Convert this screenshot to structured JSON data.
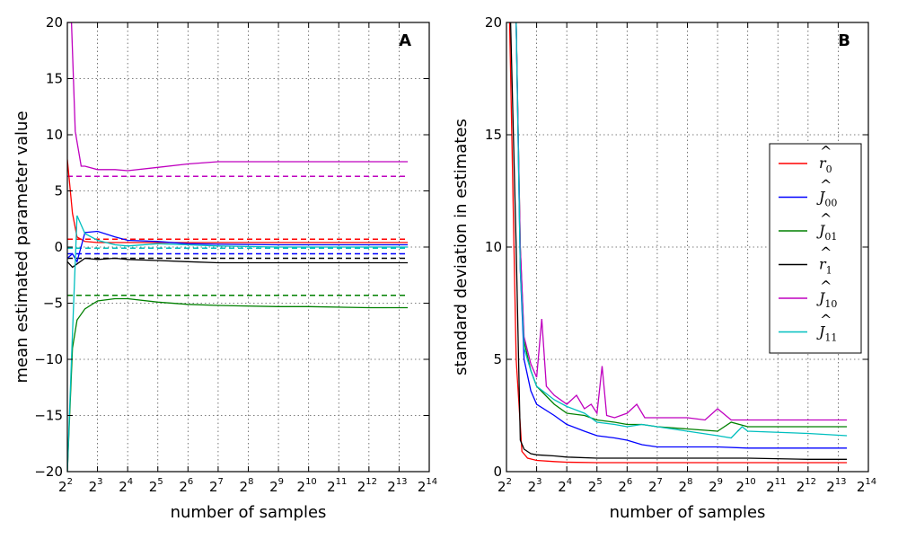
{
  "chart_data": [
    {
      "type": "line",
      "panel_label": "A",
      "xlabel": "number of samples",
      "ylabel": "mean estimated parameter value",
      "x_scale": "log2",
      "xlim": [
        4,
        16384
      ],
      "ylim": [
        -20,
        20
      ],
      "x_ticks": [
        {
          "base": "2",
          "exp": "2",
          "value": 4
        },
        {
          "base": "2",
          "exp": "3",
          "value": 8
        },
        {
          "base": "2",
          "exp": "4",
          "value": 16
        },
        {
          "base": "2",
          "exp": "5",
          "value": 32
        },
        {
          "base": "2",
          "exp": "6",
          "value": 64
        },
        {
          "base": "2",
          "exp": "7",
          "value": 128
        },
        {
          "base": "2",
          "exp": "8",
          "value": 256
        },
        {
          "base": "2",
          "exp": "9",
          "value": 512
        },
        {
          "base": "2",
          "exp": "10",
          "value": 1024
        },
        {
          "base": "2",
          "exp": "11",
          "value": 2048
        },
        {
          "base": "2",
          "exp": "12",
          "value": 4096
        },
        {
          "base": "2",
          "exp": "13",
          "value": 8192
        },
        {
          "base": "2",
          "exp": "14",
          "value": 16384
        }
      ],
      "y_ticks": [
        -20,
        -15,
        -10,
        -5,
        0,
        5,
        10,
        15,
        20
      ],
      "y_tick_labels": [
        "−20",
        "−15",
        "−10",
        "−5",
        "0",
        "5",
        "10",
        "15",
        "20"
      ],
      "grid": true,
      "series": [
        {
          "name": "r0",
          "color": "#ff0000",
          "x": [
            4,
            4.5,
            5,
            6,
            8,
            12,
            16,
            32,
            64,
            128,
            512,
            1024,
            4096,
            10000
          ],
          "y": [
            7.8,
            3.0,
            0.9,
            0.5,
            0.4,
            0.4,
            0.4,
            0.4,
            0.4,
            0.4,
            0.4,
            0.4,
            0.4,
            0.4
          ]
        },
        {
          "name": "J00",
          "color": "#0000ff",
          "x": [
            4,
            4.5,
            5,
            6,
            8,
            12,
            16,
            32,
            64,
            128,
            512,
            1024,
            4096,
            10000
          ],
          "y": [
            -1.0,
            -0.6,
            -1.3,
            1.3,
            1.4,
            0.9,
            0.6,
            0.5,
            0.3,
            0.25,
            0.2,
            0.2,
            0.2,
            0.2
          ]
        },
        {
          "name": "J01",
          "color": "#008000",
          "x": [
            4,
            4.5,
            5,
            6,
            8,
            12,
            16,
            32,
            64,
            128,
            512,
            1024,
            4096,
            10000
          ],
          "y": [
            -20,
            -9.0,
            -6.5,
            -5.5,
            -4.8,
            -4.6,
            -4.6,
            -4.9,
            -5.1,
            -5.2,
            -5.3,
            -5.3,
            -5.4,
            -5.4
          ]
        },
        {
          "name": "r1",
          "color": "#000000",
          "x": [
            4,
            4.5,
            5,
            6,
            8,
            12,
            16,
            32,
            64,
            128,
            512,
            1024,
            4096,
            10000
          ],
          "y": [
            -1.3,
            -1.8,
            -1.5,
            -1.0,
            -1.1,
            -1.0,
            -1.1,
            -1.2,
            -1.3,
            -1.4,
            -1.4,
            -1.4,
            -1.4,
            -1.4
          ]
        },
        {
          "name": "J10",
          "color": "#bf00bf",
          "x": [
            4,
            4.4,
            4.8,
            5.5,
            6,
            8,
            12,
            16,
            32,
            64,
            128,
            512,
            1024,
            4096,
            10000
          ],
          "y": [
            20,
            20,
            10.3,
            7.2,
            7.2,
            6.9,
            6.9,
            6.8,
            7.1,
            7.4,
            7.6,
            7.6,
            7.6,
            7.6,
            7.6
          ]
        },
        {
          "name": "J11",
          "color": "#00bfbf",
          "x": [
            4,
            4.4,
            5,
            6,
            8,
            12,
            16,
            32,
            64,
            128,
            512,
            1024,
            4096,
            10000
          ],
          "y": [
            -20,
            -10,
            2.8,
            1.2,
            0.6,
            0.2,
            0.1,
            0.3,
            0.2,
            0.1,
            0.0,
            0.0,
            0.0,
            0.0
          ]
        }
      ],
      "true_values": [
        {
          "name": "r0",
          "color": "#ff0000",
          "y": 0.7
        },
        {
          "name": "J00",
          "color": "#0000ff",
          "y": -0.6
        },
        {
          "name": "J01",
          "color": "#008000",
          "y": -4.3
        },
        {
          "name": "r1",
          "color": "#000000",
          "y": -1.0
        },
        {
          "name": "J10",
          "color": "#bf00bf",
          "y": 6.3
        },
        {
          "name": "J11",
          "color": "#00bfbf",
          "y": -0.1
        }
      ]
    },
    {
      "type": "line",
      "panel_label": "B",
      "xlabel": "number of samples",
      "ylabel": "standard deviation in estimates",
      "x_scale": "log2",
      "xlim": [
        4,
        16384
      ],
      "ylim": [
        0,
        20
      ],
      "x_ticks": [
        {
          "base": "2",
          "exp": "2",
          "value": 4
        },
        {
          "base": "2",
          "exp": "3",
          "value": 8
        },
        {
          "base": "2",
          "exp": "4",
          "value": 16
        },
        {
          "base": "2",
          "exp": "5",
          "value": 32
        },
        {
          "base": "2",
          "exp": "6",
          "value": 64
        },
        {
          "base": "2",
          "exp": "7",
          "value": 128
        },
        {
          "base": "2",
          "exp": "8",
          "value": 256
        },
        {
          "base": "2",
          "exp": "9",
          "value": 512
        },
        {
          "base": "2",
          "exp": "10",
          "value": 1024
        },
        {
          "base": "2",
          "exp": "11",
          "value": 2048
        },
        {
          "base": "2",
          "exp": "12",
          "value": 4096
        },
        {
          "base": "2",
          "exp": "13",
          "value": 8192
        },
        {
          "base": "2",
          "exp": "14",
          "value": 16384
        }
      ],
      "y_ticks": [
        0,
        5,
        10,
        15,
        20
      ],
      "y_tick_labels": [
        "0",
        "5",
        "10",
        "15",
        "20"
      ],
      "grid": true,
      "legend_position": "right",
      "series": [
        {
          "name": "r0",
          "label_base": "r",
          "label_sub": "0",
          "hat": true,
          "color": "#ff0000",
          "x": [
            4.3,
            5,
            5.7,
            6.5,
            8,
            12,
            16,
            32,
            64,
            128,
            512,
            1024,
            4096,
            10000
          ],
          "y": [
            20,
            5.0,
            0.9,
            0.6,
            0.5,
            0.45,
            0.42,
            0.4,
            0.4,
            0.4,
            0.4,
            0.4,
            0.4,
            0.4
          ]
        },
        {
          "name": "J00",
          "label_base": "J",
          "label_sub": "00",
          "hat": true,
          "color": "#0000ff",
          "x": [
            5,
            5.5,
            6,
            7,
            8,
            12,
            16,
            24,
            32,
            48,
            64,
            90,
            128,
            512,
            1024,
            4096,
            10000
          ],
          "y": [
            20,
            9.0,
            5.0,
            3.6,
            3.0,
            2.5,
            2.1,
            1.8,
            1.6,
            1.5,
            1.4,
            1.2,
            1.1,
            1.1,
            1.05,
            1.05,
            1.05
          ]
        },
        {
          "name": "J01",
          "label_base": "J",
          "label_sub": "01",
          "hat": true,
          "color": "#008000",
          "x": [
            5,
            5.5,
            6,
            7,
            8,
            12,
            16,
            24,
            32,
            48,
            64,
            90,
            128,
            256,
            512,
            700,
            1024,
            4096,
            10000
          ],
          "y": [
            20,
            10.0,
            5.8,
            4.5,
            3.8,
            3.0,
            2.6,
            2.5,
            2.3,
            2.2,
            2.1,
            2.1,
            2.0,
            1.9,
            1.8,
            2.2,
            2.0,
            2.0,
            2.0
          ]
        },
        {
          "name": "r1",
          "label_base": "r",
          "label_sub": "1",
          "hat": true,
          "color": "#000000",
          "x": [
            4.4,
            5,
            5.5,
            6,
            7,
            8,
            12,
            16,
            32,
            64,
            128,
            512,
            1024,
            4096,
            10000
          ],
          "y": [
            20,
            10.0,
            1.4,
            1.0,
            0.8,
            0.75,
            0.7,
            0.65,
            0.6,
            0.6,
            0.6,
            0.6,
            0.6,
            0.55,
            0.55
          ]
        },
        {
          "name": "J10",
          "label_base": "J",
          "label_sub": "10",
          "hat": true,
          "color": "#bf00bf",
          "x": [
            5,
            5.5,
            6,
            7,
            8,
            9,
            10,
            12,
            16,
            20,
            24,
            28,
            32,
            36,
            40,
            48,
            64,
            80,
            96,
            128,
            256,
            384,
            512,
            700,
            1024,
            4096,
            10000
          ],
          "y": [
            20,
            10.0,
            6.0,
            4.8,
            4.2,
            6.8,
            3.8,
            3.4,
            3.0,
            3.4,
            2.8,
            3.0,
            2.6,
            4.7,
            2.5,
            2.4,
            2.6,
            3.0,
            2.4,
            2.4,
            2.4,
            2.3,
            2.8,
            2.3,
            2.3,
            2.3,
            2.3
          ]
        },
        {
          "name": "J11",
          "label_base": "J",
          "label_sub": "11",
          "hat": true,
          "color": "#00bfbf",
          "x": [
            5,
            5.5,
            6,
            7,
            8,
            12,
            16,
            24,
            32,
            48,
            64,
            90,
            128,
            256,
            512,
            700,
            900,
            1024,
            4096,
            10000
          ],
          "y": [
            20,
            9.0,
            5.5,
            4.5,
            3.8,
            3.2,
            2.9,
            2.6,
            2.2,
            2.1,
            2.0,
            2.1,
            2.0,
            1.8,
            1.6,
            1.5,
            2.0,
            1.8,
            1.7,
            1.6
          ]
        }
      ]
    }
  ]
}
